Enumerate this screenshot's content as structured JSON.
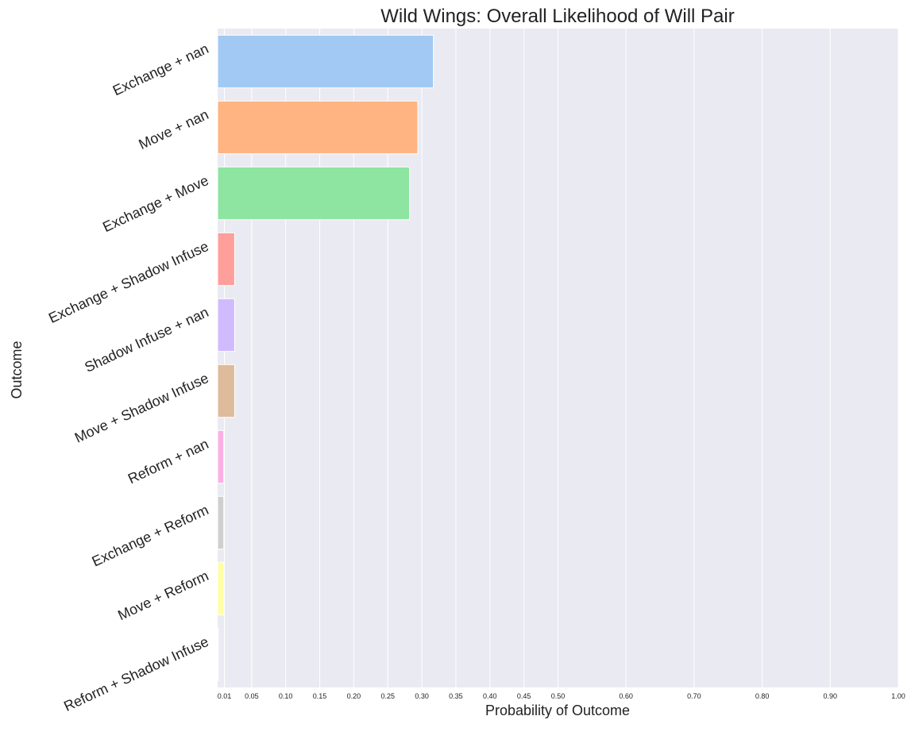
{
  "chart_data": {
    "type": "bar",
    "orientation": "horizontal",
    "title": "Wild Wings: Overall Likelihood of Will Pair",
    "xlabel": "Probability of Outcome",
    "ylabel": "Outcome",
    "xlim": [
      0.0,
      1.0
    ],
    "grid": true,
    "legend": "none",
    "categories": [
      "Exchange + nan",
      "Move + nan",
      "Exchange + Move",
      "Exchange + Shadow Infuse",
      "Shadow Infuse + nan",
      "Move + Shadow Infuse",
      "Reform + nan",
      "Exchange + Reform",
      "Move + Reform",
      "Reform + Shadow Infuse"
    ],
    "values": [
      0.317,
      0.294,
      0.282,
      0.025,
      0.025,
      0.025,
      0.009,
      0.009,
      0.009,
      0.001
    ],
    "colors": [
      "#a1c9f4",
      "#ffb482",
      "#8de5a1",
      "#ff9f9b",
      "#d0bbff",
      "#debb9b",
      "#fab0e4",
      "#cfcfcf",
      "#fffea3",
      "#b9f2f0"
    ],
    "xticks": [
      "0.01",
      "0.05",
      "0.10",
      "0.15",
      "0.20",
      "0.25",
      "0.30",
      "0.35",
      "0.40",
      "0.45",
      "0.50",
      "0.60",
      "0.70",
      "0.80",
      "0.90",
      "1.00"
    ]
  }
}
